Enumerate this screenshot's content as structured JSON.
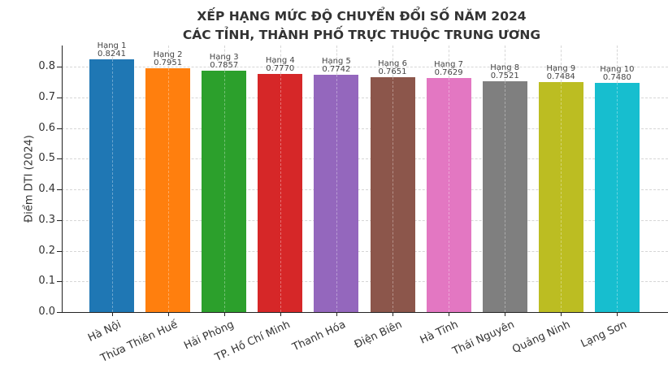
{
  "chart_data": {
    "type": "bar",
    "title": "XẾP HẠNG MỨC ĐỘ CHUYỂN ĐỔI SỐ NĂM 2024\nCÁC TỈNH, THÀNH PHỐ TRỰC THUỘC TRUNG ƯƠNG",
    "title_lines": [
      "XẾP HẠNG MỨC ĐỘ CHUYỂN ĐỔI SỐ NĂM 2024",
      "CÁC TỈNH, THÀNH PHỐ TRỰC THUỘC TRUNG ƯƠNG"
    ],
    "xlabel": "",
    "ylabel": "Điểm DTI (2024)",
    "ylim": [
      0,
      0.87
    ],
    "yticks": [
      "0.0",
      "0.1",
      "0.2",
      "0.3",
      "0.4",
      "0.5",
      "0.6",
      "0.7",
      "0.8"
    ],
    "grid": true,
    "legend": null,
    "categories": [
      "Hà Nội",
      "Thừa Thiên Huế",
      "Hải Phòng",
      "TP. Hồ Chí Minh",
      "Thanh Hóa",
      "Điện Biên",
      "Hà Tĩnh",
      "Thái Nguyên",
      "Quảng Ninh",
      "Lạng Sơn"
    ],
    "values": [
      0.8241,
      0.7951,
      0.7857,
      0.777,
      0.7742,
      0.7651,
      0.7629,
      0.7521,
      0.7484,
      0.748
    ],
    "annotations": [
      {
        "rank": "Hạng 1",
        "value": "0.8241"
      },
      {
        "rank": "Hạng 2",
        "value": "0.7951"
      },
      {
        "rank": "Hạng 3",
        "value": "0.7857"
      },
      {
        "rank": "Hạng 4",
        "value": "0.7770"
      },
      {
        "rank": "Hạng 5",
        "value": "0.7742"
      },
      {
        "rank": "Hạng 6",
        "value": "0.7651"
      },
      {
        "rank": "Hạng 7",
        "value": "0.7629"
      },
      {
        "rank": "Hạng 8",
        "value": "0.7521"
      },
      {
        "rank": "Hạng 9",
        "value": "0.7484"
      },
      {
        "rank": "Hạng 10",
        "value": "0.7480"
      }
    ],
    "colors": [
      "#1f77b4",
      "#ff7f0e",
      "#2ca02c",
      "#d62728",
      "#9467bd",
      "#8c564b",
      "#e377c2",
      "#7f7f7f",
      "#bcbd22",
      "#17becf"
    ]
  }
}
